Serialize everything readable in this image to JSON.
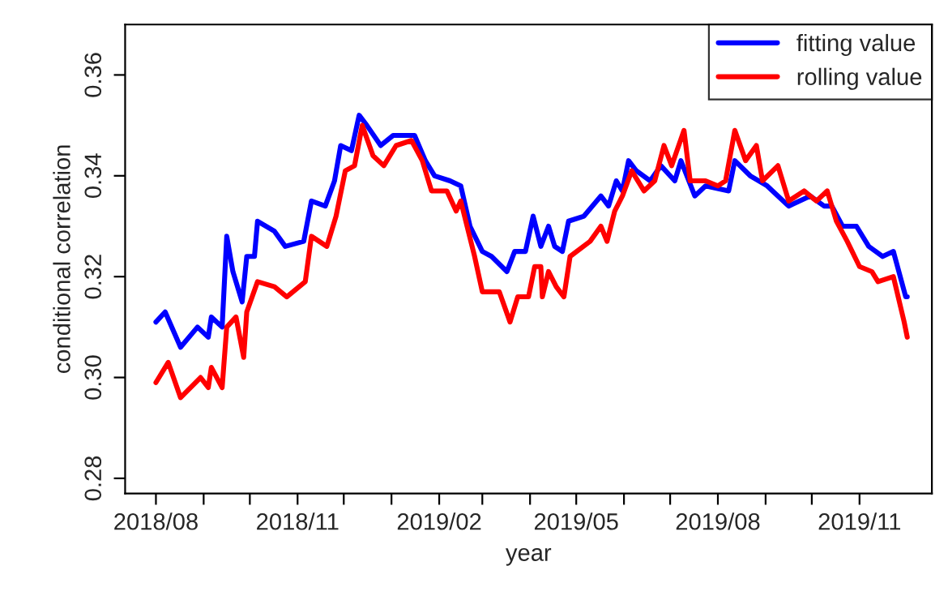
{
  "chart_data": {
    "type": "line",
    "xlabel": "year",
    "ylabel": "conditional correlation",
    "xlim": [
      "2018-07-12",
      "2019-12-18"
    ],
    "ylim": [
      0.277,
      0.37
    ],
    "yticks": [
      {
        "value": 0.28,
        "label": "0.28"
      },
      {
        "value": 0.3,
        "label": "0.30"
      },
      {
        "value": 0.32,
        "label": "0.32"
      },
      {
        "value": 0.34,
        "label": "0.34"
      },
      {
        "value": 0.36,
        "label": "0.36"
      }
    ],
    "xticks": [
      {
        "value": "2018-08",
        "label": "2018/08"
      },
      {
        "value": "2018-09",
        "label": null
      },
      {
        "value": "2018-10",
        "label": null
      },
      {
        "value": "2018-11",
        "label": "2018/11"
      },
      {
        "value": "2018-12",
        "label": null
      },
      {
        "value": "2019-01",
        "label": null
      },
      {
        "value": "2019-02",
        "label": "2019/02"
      },
      {
        "value": "2019-03",
        "label": null
      },
      {
        "value": "2019-04",
        "label": null
      },
      {
        "value": "2019-05",
        "label": "2019/05"
      },
      {
        "value": "2019-06",
        "label": null
      },
      {
        "value": "2019-07",
        "label": null
      },
      {
        "value": "2019-08",
        "label": "2019/08"
      },
      {
        "value": "2019-09",
        "label": null
      },
      {
        "value": "2019-10",
        "label": null
      },
      {
        "value": "2019-11",
        "label": "2019/11"
      }
    ],
    "grid": false,
    "legend": "top right",
    "line_style": "solid",
    "marker": "none",
    "series": [
      {
        "name": "fitting value",
        "color": "#0000ff",
        "x": [
          "2018-08-01",
          "2018-08-07",
          "2018-08-17",
          "2018-08-28",
          "2018-09-04",
          "2018-09-06",
          "2018-09-13",
          "2018-09-16",
          "2018-09-20",
          "2018-09-26",
          "2018-09-29",
          "2018-10-04",
          "2018-10-06",
          "2018-10-17",
          "2018-10-24",
          "2018-11-05",
          "2018-11-10",
          "2018-11-19",
          "2018-11-25",
          "2018-11-29",
          "2018-12-06",
          "2018-12-11",
          "2018-12-16",
          "2018-12-25",
          "2019-01-02",
          "2019-01-16",
          "2019-01-23",
          "2019-01-29",
          "2019-02-08",
          "2019-02-15",
          "2019-02-21",
          "2019-03-01",
          "2019-03-07",
          "2019-03-17",
          "2019-03-22",
          "2019-03-29",
          "2019-04-03",
          "2019-04-08",
          "2019-04-13",
          "2019-04-17",
          "2019-04-22",
          "2019-04-26",
          "2019-05-06",
          "2019-05-17",
          "2019-05-22",
          "2019-05-27",
          "2019-05-31",
          "2019-06-04",
          "2019-06-09",
          "2019-06-18",
          "2019-06-25",
          "2019-07-04",
          "2019-07-08",
          "2019-07-17",
          "2019-07-24",
          "2019-08-08",
          "2019-08-12",
          "2019-08-22",
          "2019-09-02",
          "2019-09-09",
          "2019-09-16",
          "2019-09-30",
          "2019-10-09",
          "2019-10-14",
          "2019-10-21",
          "2019-10-30",
          "2019-11-07",
          "2019-11-16",
          "2019-11-23",
          "2019-12-01",
          "2019-12-02"
        ],
        "values": [
          0.311,
          0.313,
          0.306,
          0.31,
          0.308,
          0.312,
          0.31,
          0.328,
          0.321,
          0.315,
          0.324,
          0.324,
          0.331,
          0.329,
          0.326,
          0.327,
          0.335,
          0.334,
          0.339,
          0.346,
          0.345,
          0.352,
          0.35,
          0.346,
          0.348,
          0.348,
          0.343,
          0.34,
          0.339,
          0.338,
          0.33,
          0.325,
          0.324,
          0.321,
          0.325,
          0.325,
          0.332,
          0.326,
          0.33,
          0.326,
          0.325,
          0.331,
          0.332,
          0.336,
          0.334,
          0.339,
          0.337,
          0.343,
          0.341,
          0.339,
          0.342,
          0.339,
          0.343,
          0.336,
          0.338,
          0.337,
          0.343,
          0.34,
          0.338,
          0.336,
          0.334,
          0.336,
          0.334,
          0.334,
          0.33,
          0.33,
          0.326,
          0.324,
          0.325,
          0.316,
          0.316
        ]
      },
      {
        "name": "rolling value",
        "color": "#ff0000",
        "x": [
          "2018-08-01",
          "2018-08-09",
          "2018-08-17",
          "2018-08-30",
          "2018-09-04",
          "2018-09-06",
          "2018-09-13",
          "2018-09-16",
          "2018-09-22",
          "2018-09-27",
          "2018-09-29",
          "2018-10-06",
          "2018-10-17",
          "2018-10-25",
          "2018-11-06",
          "2018-11-10",
          "2018-11-20",
          "2018-11-26",
          "2018-12-02",
          "2018-12-08",
          "2018-12-13",
          "2018-12-20",
          "2018-12-27",
          "2019-01-04",
          "2019-01-14",
          "2019-01-21",
          "2019-01-27",
          "2019-02-06",
          "2019-02-12",
          "2019-02-15",
          "2019-02-24",
          "2019-03-01",
          "2019-03-12",
          "2019-03-19",
          "2019-03-24",
          "2019-03-31",
          "2019-04-04",
          "2019-04-08",
          "2019-04-09",
          "2019-04-13",
          "2019-04-18",
          "2019-04-23",
          "2019-04-27",
          "2019-05-10",
          "2019-05-17",
          "2019-05-21",
          "2019-05-26",
          "2019-05-31",
          "2019-06-06",
          "2019-06-14",
          "2019-06-21",
          "2019-06-27",
          "2019-07-02",
          "2019-07-10",
          "2019-07-14",
          "2019-07-24",
          "2019-08-01",
          "2019-08-06",
          "2019-08-12",
          "2019-08-19",
          "2019-08-26",
          "2019-08-30",
          "2019-09-09",
          "2019-09-16",
          "2019-09-26",
          "2019-10-04",
          "2019-10-11",
          "2019-10-17",
          "2019-10-24",
          "2019-11-01",
          "2019-11-09",
          "2019-11-13",
          "2019-11-23",
          "2019-11-30",
          "2019-12-02"
        ],
        "values": [
          0.299,
          0.303,
          0.296,
          0.3,
          0.298,
          0.302,
          0.298,
          0.31,
          0.312,
          0.304,
          0.313,
          0.319,
          0.318,
          0.316,
          0.319,
          0.328,
          0.326,
          0.332,
          0.341,
          0.342,
          0.35,
          0.344,
          0.342,
          0.346,
          0.347,
          0.343,
          0.337,
          0.337,
          0.333,
          0.335,
          0.324,
          0.317,
          0.317,
          0.311,
          0.316,
          0.316,
          0.322,
          0.322,
          0.316,
          0.321,
          0.318,
          0.316,
          0.324,
          0.327,
          0.33,
          0.327,
          0.333,
          0.336,
          0.341,
          0.337,
          0.339,
          0.346,
          0.342,
          0.349,
          0.339,
          0.339,
          0.338,
          0.339,
          0.349,
          0.343,
          0.346,
          0.339,
          0.342,
          0.335,
          0.337,
          0.335,
          0.337,
          0.331,
          0.327,
          0.322,
          0.321,
          0.319,
          0.32,
          0.311,
          0.308
        ]
      }
    ]
  }
}
